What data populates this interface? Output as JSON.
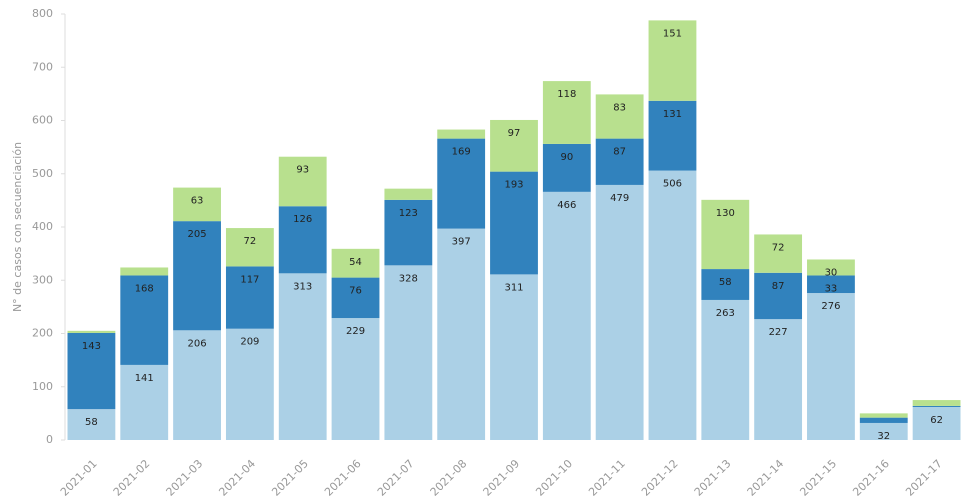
{
  "chart_data": {
    "type": "stacked_bar",
    "y_label": "N° de casos con secuenciación",
    "categories": [
      "2021-01",
      "2021-02",
      "2021-03",
      "2021-04",
      "2021-05",
      "2021-06",
      "2021-07",
      "2021-08",
      "2021-09",
      "2021-10",
      "2021-11",
      "2021-12",
      "2021-13",
      "2021-14",
      "2021-15",
      "2021-16",
      "2021-17"
    ],
    "series": [
      {
        "color": "#abd0e6",
        "values": [
          58,
          141,
          206,
          209,
          313,
          229,
          328,
          397,
          311,
          466,
          479,
          506,
          263,
          227,
          276,
          32,
          62
        ]
      },
      {
        "color": "#3182bd",
        "values": [
          143,
          168,
          205,
          117,
          126,
          76,
          123,
          169,
          193,
          90,
          87,
          131,
          58,
          87,
          33,
          10,
          2
        ]
      },
      {
        "color": "#b8e08e",
        "values": [
          4,
          15,
          63,
          72,
          93,
          54,
          21,
          17,
          97,
          118,
          83,
          151,
          130,
          72,
          30,
          8,
          11
        ]
      }
    ],
    "ylim": [
      0,
      800
    ],
    "yticks": [
      0,
      100,
      200,
      300,
      400,
      500,
      600,
      700,
      800
    ]
  }
}
